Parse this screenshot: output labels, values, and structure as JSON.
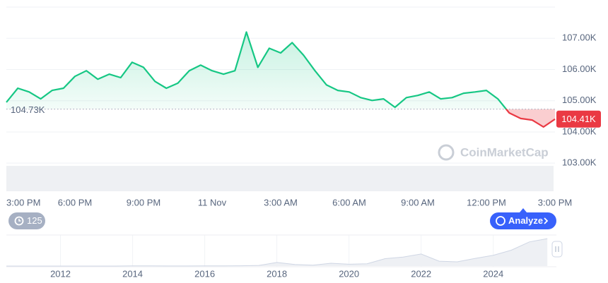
{
  "chart_data": [
    {
      "type": "line",
      "x": [
        0,
        0.5,
        1,
        1.5,
        2,
        2.5,
        3,
        3.5,
        4,
        4.5,
        5,
        5.5,
        6,
        6.5,
        7,
        7.5,
        8,
        8.5,
        9,
        9.5,
        10,
        10.5,
        11,
        11.5,
        12,
        12.5,
        13,
        13.5,
        14,
        14.5,
        15,
        15.5,
        16,
        16.5,
        17,
        17.5,
        18,
        18.5,
        19,
        19.5,
        20,
        20.5,
        21,
        21.5,
        22,
        22.5,
        23,
        23.5,
        24
      ],
      "series": [
        {
          "values": [
            104950,
            105400,
            105280,
            105060,
            105330,
            105400,
            105780,
            105960,
            105690,
            105850,
            105740,
            106230,
            106070,
            105620,
            105400,
            105560,
            105960,
            106140,
            105960,
            105850,
            105960,
            107200,
            106070,
            106680,
            106530,
            106860,
            106460,
            105960,
            105510,
            105330,
            105280,
            105100,
            105010,
            105060,
            104790,
            105100,
            105170,
            105280,
            105060,
            105100,
            105240,
            105280,
            105330,
            105060,
            104610,
            104430,
            104380,
            104160,
            104410
          ]
        }
      ],
      "color": "#16c784",
      "down_color": "#ea3943",
      "reference": {
        "value": 104730,
        "label": "104.73K"
      },
      "current": {
        "value": 104410,
        "label": "104.41K"
      },
      "xlim": [
        0,
        24
      ],
      "xticks": [
        {
          "value": 0,
          "label": "3:00 PM"
        },
        {
          "value": 3,
          "label": "6:00 PM"
        },
        {
          "value": 6,
          "label": "9:00 PM"
        },
        {
          "value": 9,
          "label": "11 Nov"
        },
        {
          "value": 12,
          "label": "3:00 AM"
        },
        {
          "value": 15,
          "label": "6:00 AM"
        },
        {
          "value": 18,
          "label": "9:00 AM"
        },
        {
          "value": 21,
          "label": "12:00 PM"
        },
        {
          "value": 24,
          "label": "3:00 PM"
        }
      ],
      "ylim": [
        102100,
        108000
      ],
      "yticks": [
        {
          "value": 103000,
          "label": "103.00K"
        },
        {
          "value": 104000,
          "label": "104.00K"
        },
        {
          "value": 105000,
          "label": "105.00K"
        },
        {
          "value": 106000,
          "label": "106.00K"
        },
        {
          "value": 107000,
          "label": "107.00K"
        }
      ],
      "grid": true
    },
    {
      "type": "area",
      "x": [
        2010.5,
        2011,
        2011.5,
        2012,
        2012.5,
        2013,
        2013.5,
        2014,
        2014.5,
        2015,
        2015.5,
        2016,
        2016.5,
        2017,
        2017.5,
        2018,
        2018.5,
        2019,
        2019.5,
        2020,
        2020.5,
        2021,
        2021.5,
        2022,
        2022.5,
        2023,
        2023.5,
        2024,
        2024.5,
        2025,
        2025.5
      ],
      "values": [
        0,
        0,
        15,
        5,
        7,
        13,
        100,
        800,
        600,
        300,
        250,
        430,
        650,
        1000,
        2500,
        14000,
        6400,
        3700,
        11000,
        7200,
        9200,
        29000,
        35000,
        47000,
        19000,
        16500,
        30000,
        42000,
        62000,
        94000,
        107000
      ],
      "color": "#cfd6e4",
      "xlim": [
        2010.5,
        2025.75
      ],
      "xticks": [
        2012,
        2014,
        2016,
        2018,
        2020,
        2022,
        2024
      ],
      "ylim": [
        0,
        110000
      ],
      "grid": true
    }
  ],
  "ui": {
    "badge": "125",
    "button": "Analyze",
    "watermark": "CoinMarketCap"
  }
}
